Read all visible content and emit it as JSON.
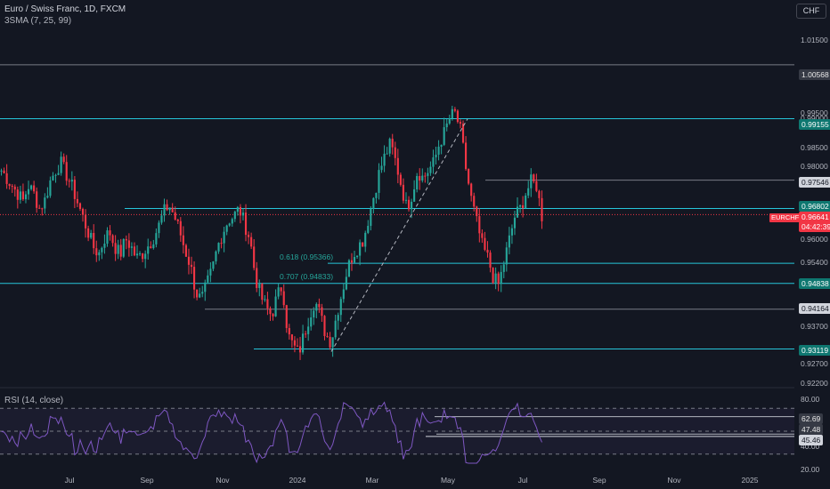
{
  "header": {
    "title": "Euro / Swiss Franc, 1D, FXCM",
    "indicator": "3SMA (7, 25, 99)",
    "currency_button": "CHF"
  },
  "price_axis": {
    "ticks": [
      "1.01500",
      "0.99500",
      "0.99000",
      "0.98500",
      "0.98000",
      "0.96000",
      "0.95400",
      "0.93700",
      "0.92700",
      "0.92200"
    ],
    "level_tags": [
      {
        "value": "1.00568",
        "style": "gray"
      },
      {
        "value": "0.99155",
        "style": "teal"
      },
      {
        "value": "0.97546",
        "style": "white"
      },
      {
        "value": "0.96802",
        "style": "teal"
      },
      {
        "value": "0.96641",
        "style": "red"
      },
      {
        "value": "04:42:39",
        "style": "red"
      },
      {
        "value": "0.94838",
        "style": "teal"
      },
      {
        "value": "0.94164",
        "style": "white"
      },
      {
        "value": "0.93119",
        "style": "teal"
      }
    ],
    "symbol_tag": "EURCHF"
  },
  "fib_labels": [
    "0.618 (0.95366)",
    "0.707 (0.94833)"
  ],
  "rsi": {
    "label": "RSI (14, close)",
    "ticks": [
      "80.00",
      "40.00",
      "20.00"
    ],
    "value_tags": [
      "62.69",
      "47.48",
      "45.46"
    ]
  },
  "time_axis": [
    "Jul",
    "Sep",
    "Nov",
    "2024",
    "Mar",
    "May",
    "Jul",
    "Sep",
    "Nov",
    "2025"
  ],
  "colors": {
    "background": "#131722",
    "up": "#26a69a",
    "down": "#f23645",
    "teal_line": "#26c6da",
    "gray_line": "#787b86",
    "rsi_line": "#7e57c2"
  },
  "chart_data": {
    "type": "candlestick",
    "symbol": "EURCHF",
    "series": [
      {
        "name": "EURCHF",
        "close_path": [
          0.978,
          0.976,
          0.974,
          0.972,
          0.97,
          0.974,
          0.972,
          0.968,
          0.97,
          0.975,
          0.978,
          0.98,
          0.977,
          0.974,
          0.97,
          0.966,
          0.962,
          0.958,
          0.956,
          0.96,
          0.962,
          0.958,
          0.956,
          0.96,
          0.958,
          0.955,
          0.956,
          0.958,
          0.96,
          0.963,
          0.967,
          0.969,
          0.966,
          0.962,
          0.957,
          0.953,
          0.946,
          0.944,
          0.948,
          0.952,
          0.958,
          0.962,
          0.965,
          0.966,
          0.968,
          0.964,
          0.96,
          0.95,
          0.945,
          0.942,
          0.94,
          0.945,
          0.948,
          0.935,
          0.932,
          0.93,
          0.935,
          0.94,
          0.944,
          0.94,
          0.935,
          0.933,
          0.94,
          0.946,
          0.952,
          0.956,
          0.958,
          0.96,
          0.966,
          0.972,
          0.978,
          0.982,
          0.985,
          0.98,
          0.974,
          0.968,
          0.972,
          0.978,
          0.976,
          0.978,
          0.98,
          0.985,
          0.988,
          0.992,
          0.993,
          0.988,
          0.978,
          0.97,
          0.964,
          0.958,
          0.955,
          0.95,
          0.948,
          0.954,
          0.96,
          0.966,
          0.968,
          0.972,
          0.975,
          0.974,
          0.966
        ]
      }
    ],
    "horizontal_levels": [
      1.00568,
      0.99155,
      0.97546,
      0.96802,
      0.96641,
      0.95366,
      0.94838,
      0.94164,
      0.93119
    ],
    "ylim": [
      0.922,
      1.018
    ]
  }
}
